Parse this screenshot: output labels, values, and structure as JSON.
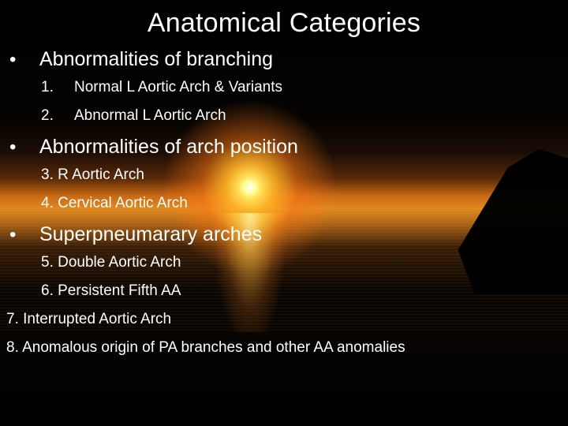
{
  "colors": {
    "text": "#ffffff",
    "background_black": "#000000",
    "sun_core": "#ffffff",
    "sun_glow": "#ffdd55",
    "horizon_orange": "#c96a15"
  },
  "typography": {
    "title_fontsize": 34,
    "category_fontsize": 25,
    "item_fontsize": 19,
    "font_family": "Arial"
  },
  "title": "Anatomical Categories",
  "categories": [
    {
      "bullet": "•",
      "label": "Abnormalities of branching",
      "items": [
        {
          "num": "1.",
          "label": "Normal L Aortic Arch & Variants"
        },
        {
          "num": "2.",
          "label": "Abnormal L Aortic Arch"
        }
      ]
    },
    {
      "bullet": "•",
      "label": "Abnormalities of arch position",
      "items": [
        {
          "full": "3.  R Aortic Arch"
        },
        {
          "full": "4.  Cervical Aortic Arch"
        }
      ]
    },
    {
      "bullet": "•",
      "label": "Superpneumarary arches",
      "items": [
        {
          "full": "5. Double Aortic Arch"
        },
        {
          "full": "6. Persistent Fifth AA"
        }
      ]
    }
  ],
  "loose_items": [
    "7. Interrupted Aortic Arch",
    "8. Anomalous origin of PA branches and other AA anomalies"
  ]
}
